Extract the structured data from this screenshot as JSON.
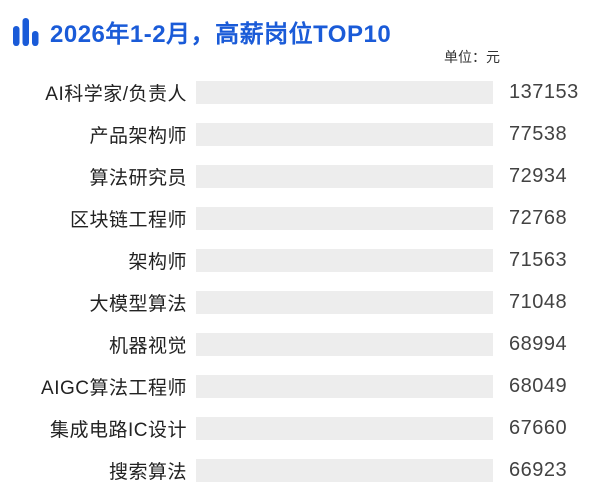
{
  "header": {
    "title": "2026年1-2月，高薪岗位TOP10",
    "icon": "bar-chart-icon"
  },
  "unit_label": "单位：元",
  "colors": {
    "title_blue": "#1A5BD8",
    "bar_blue": "#4478F2",
    "track_gray": "#EDEDED",
    "label_text": "#222222",
    "value_text": "#424242"
  },
  "chart_data": {
    "type": "bar",
    "orientation": "horizontal",
    "title": "2026年1-2月，高薪岗位TOP10",
    "unit": "元",
    "legend": false,
    "grid": false,
    "xlim": [
      0,
      137153
    ],
    "categories": [
      "AI科学家/负责人",
      "产品架构师",
      "算法研究员",
      "区块链工程师",
      "架构师",
      "大模型算法",
      "机器视觉",
      "AIGC算法工程师",
      "集成电路IC设计",
      "搜索算法"
    ],
    "values": [
      137153,
      77538,
      72934,
      72768,
      71563,
      71048,
      68994,
      68049,
      67660,
      66923
    ]
  }
}
